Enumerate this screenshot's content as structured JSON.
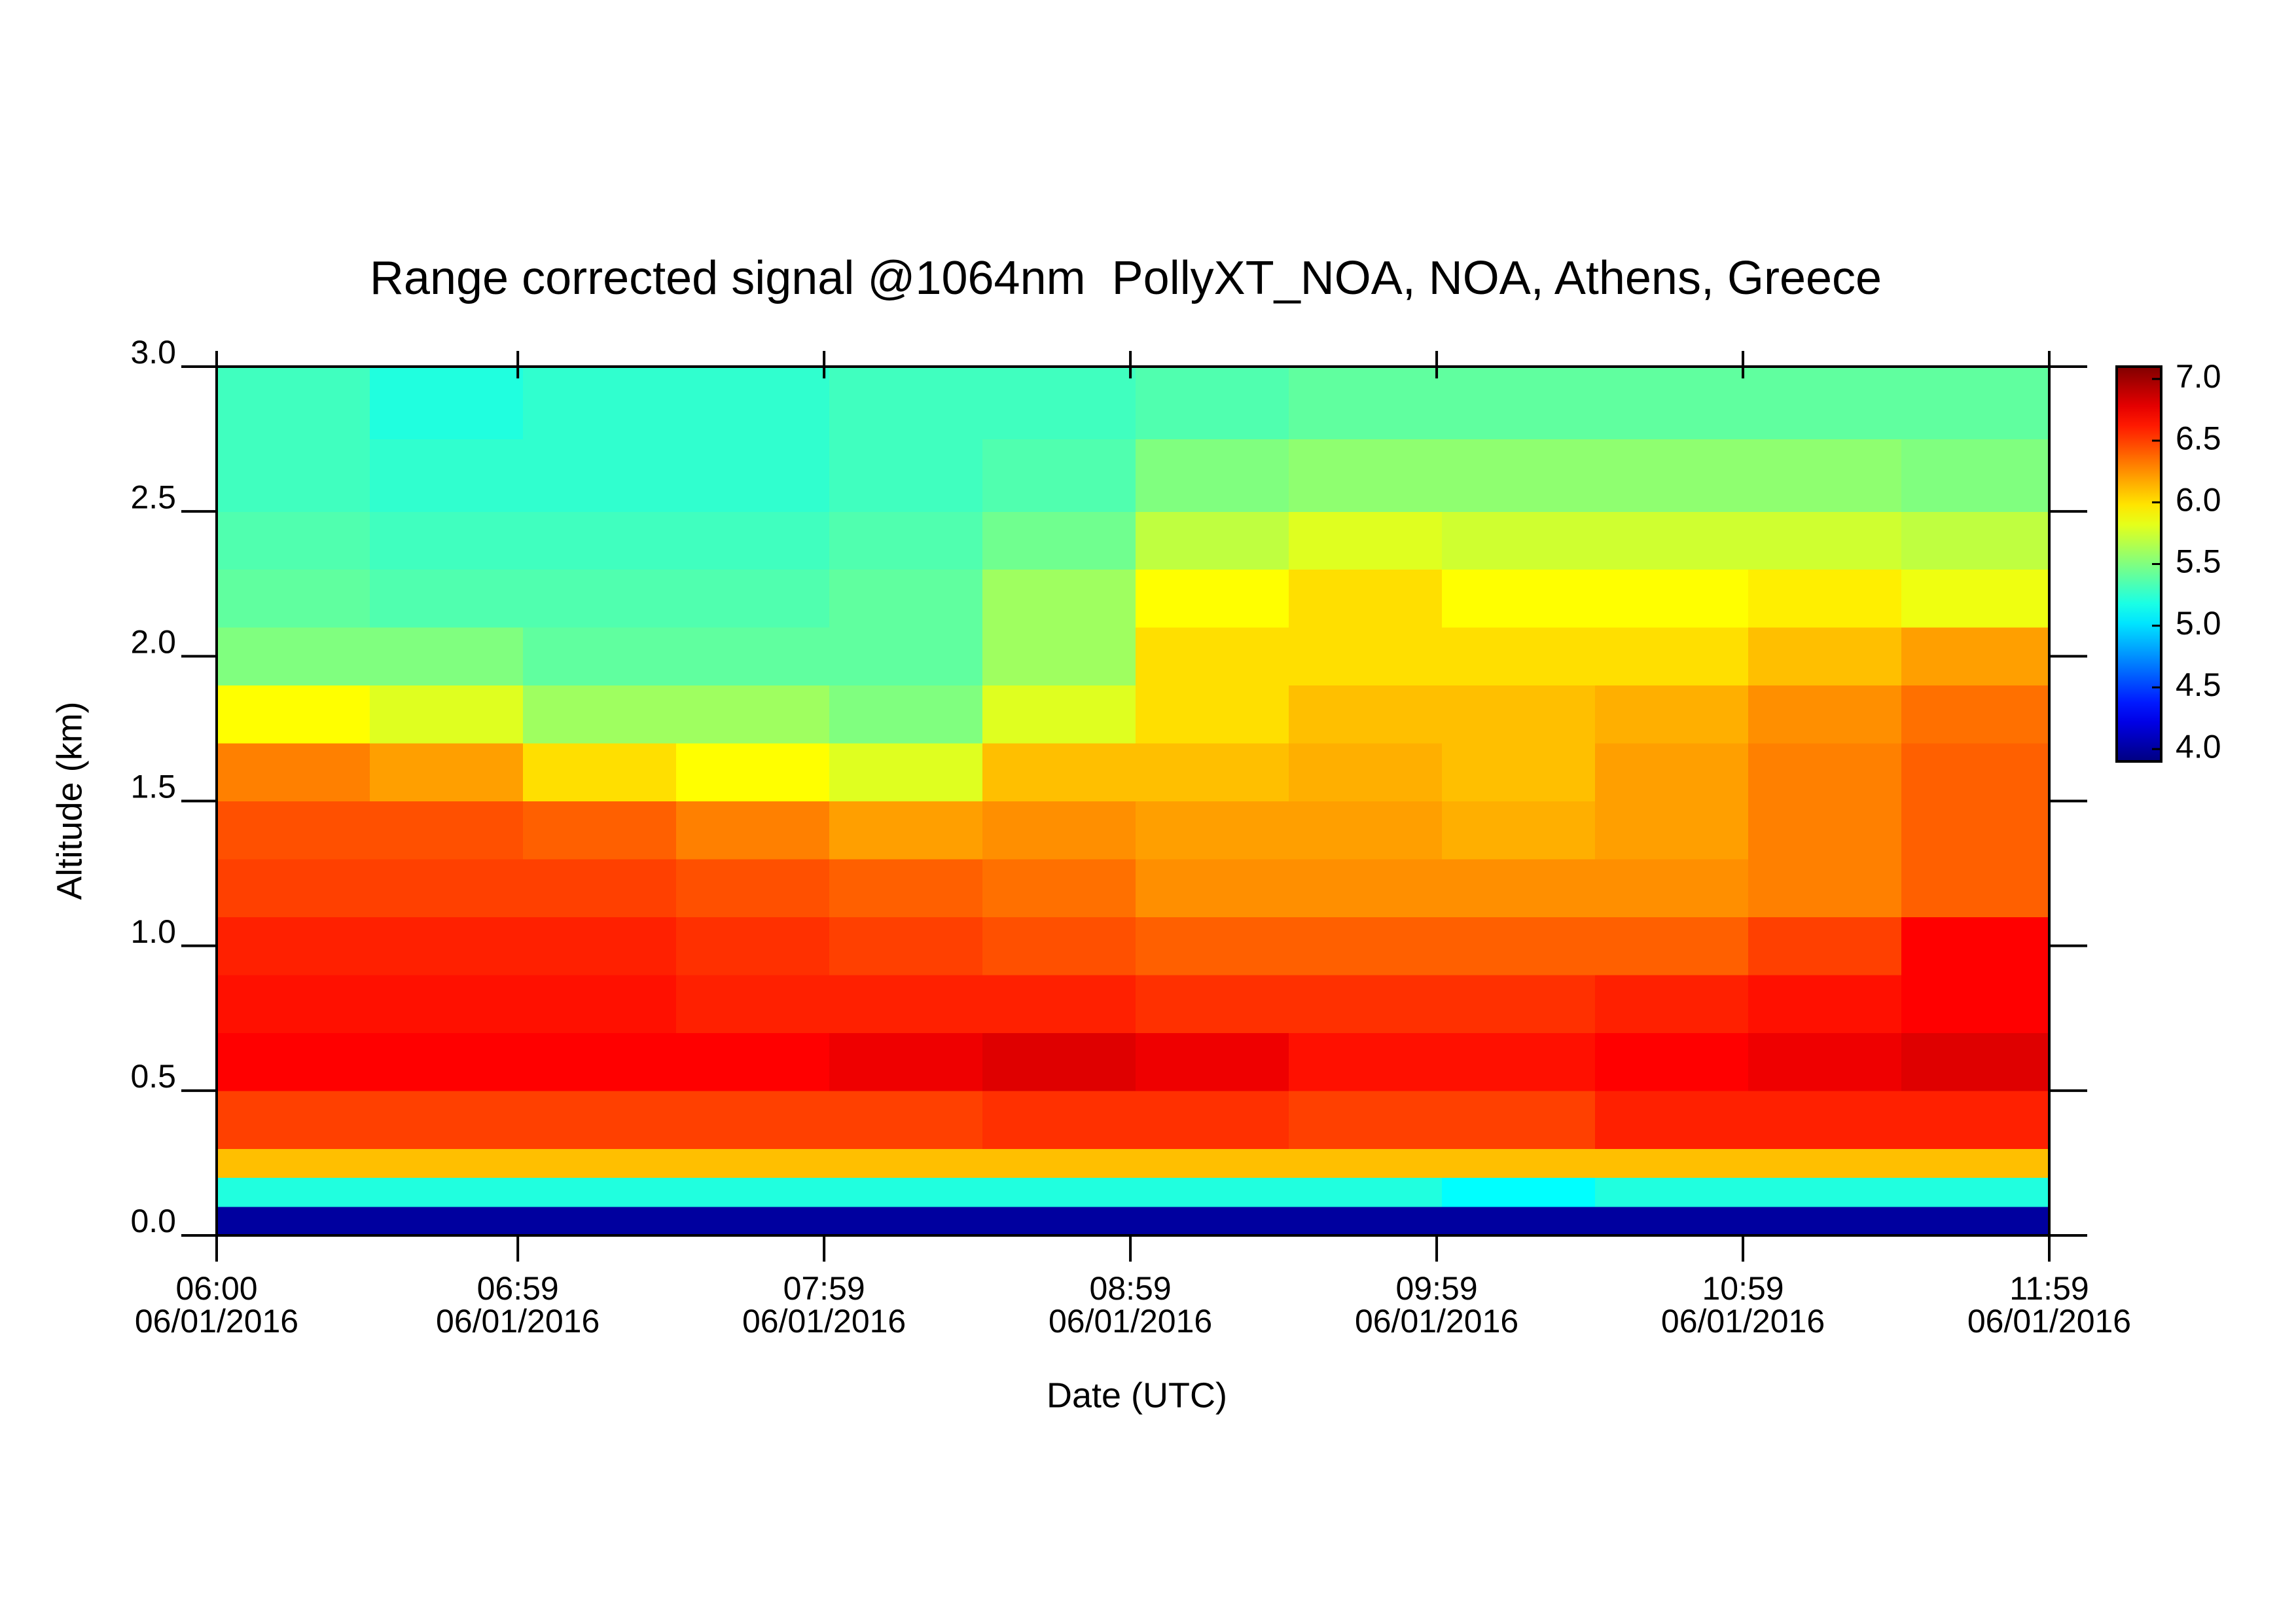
{
  "chart_data": {
    "type": "heatmap",
    "title": "Range corrected signal @1064nm  PollyXT_NOA, NOA, Athens, Greece",
    "xlabel": "Date (UTC)",
    "ylabel": "Altitude (km)",
    "colormap": "jet",
    "x": [
      "06:00",
      "06:30",
      "07:00",
      "07:30",
      "08:00",
      "08:30",
      "09:00",
      "09:30",
      "10:00",
      "10:30",
      "11:00",
      "11:30"
    ],
    "yedges": [
      0,
      0.1,
      0.2,
      0.3,
      0.5,
      0.7,
      0.9,
      1.1,
      1.3,
      1.5,
      1.7,
      1.9,
      2.1,
      2.3,
      2.5,
      2.75,
      3.0
    ],
    "values": [
      [
        4.0,
        4.0,
        4.0,
        4.0,
        4.0,
        4.0,
        4.0,
        4.0,
        4.0,
        4.0,
        4.0,
        4.0
      ],
      [
        5.2,
        5.2,
        5.2,
        5.2,
        5.2,
        5.2,
        5.2,
        5.2,
        5.1,
        5.2,
        5.2,
        5.2
      ],
      [
        6.1,
        6.1,
        6.1,
        6.1,
        6.1,
        6.1,
        6.1,
        6.1,
        6.1,
        6.1,
        6.1,
        6.1
      ],
      [
        6.5,
        6.5,
        6.5,
        6.5,
        6.5,
        6.55,
        6.55,
        6.5,
        6.5,
        6.6,
        6.6,
        6.6
      ],
      [
        6.7,
        6.7,
        6.7,
        6.7,
        6.75,
        6.8,
        6.75,
        6.65,
        6.65,
        6.7,
        6.75,
        6.8
      ],
      [
        6.65,
        6.65,
        6.65,
        6.6,
        6.6,
        6.6,
        6.55,
        6.55,
        6.55,
        6.6,
        6.65,
        6.7
      ],
      [
        6.6,
        6.6,
        6.6,
        6.55,
        6.5,
        6.45,
        6.4,
        6.4,
        6.4,
        6.4,
        6.5,
        6.7
      ],
      [
        6.5,
        6.5,
        6.5,
        6.45,
        6.4,
        6.35,
        6.25,
        6.25,
        6.25,
        6.25,
        6.3,
        6.4
      ],
      [
        6.45,
        6.45,
        6.4,
        6.3,
        6.2,
        6.25,
        6.2,
        6.2,
        6.15,
        6.2,
        6.3,
        6.4
      ],
      [
        6.3,
        6.2,
        6.0,
        5.9,
        5.8,
        6.1,
        6.1,
        6.15,
        6.1,
        6.2,
        6.3,
        6.4
      ],
      [
        5.9,
        5.8,
        5.6,
        5.6,
        5.5,
        5.8,
        6.0,
        6.1,
        6.1,
        6.15,
        6.25,
        6.35
      ],
      [
        5.5,
        5.5,
        5.4,
        5.4,
        5.4,
        5.6,
        6.0,
        6.0,
        6.0,
        6.0,
        6.1,
        6.2
      ],
      [
        5.4,
        5.35,
        5.35,
        5.35,
        5.4,
        5.6,
        5.9,
        6.0,
        5.9,
        5.9,
        5.95,
        5.85
      ],
      [
        5.35,
        5.3,
        5.3,
        5.3,
        5.35,
        5.45,
        5.7,
        5.8,
        5.75,
        5.75,
        5.75,
        5.7
      ],
      [
        5.3,
        5.25,
        5.25,
        5.25,
        5.3,
        5.35,
        5.5,
        5.55,
        5.55,
        5.55,
        5.55,
        5.5
      ],
      [
        5.3,
        5.2,
        5.25,
        5.25,
        5.3,
        5.3,
        5.35,
        5.4,
        5.4,
        5.4,
        5.4,
        5.4
      ]
    ],
    "xlim": [
      "06:00",
      "11:59"
    ],
    "xticks": [
      {
        "value": "06:00",
        "label": [
          "06:00",
          "06/01/2016"
        ]
      },
      {
        "value": "06:59",
        "label": [
          "06:59",
          "06/01/2016"
        ]
      },
      {
        "value": "07:59",
        "label": [
          "07:59",
          "06/01/2016"
        ]
      },
      {
        "value": "08:59",
        "label": [
          "08:59",
          "06/01/2016"
        ]
      },
      {
        "value": "09:59",
        "label": [
          "09:59",
          "06/01/2016"
        ]
      },
      {
        "value": "10:59",
        "label": [
          "10:59",
          "06/01/2016"
        ]
      },
      {
        "value": "11:59",
        "label": [
          "11:59",
          "06/01/2016"
        ]
      }
    ],
    "ylim": [
      0,
      3.0
    ],
    "yticks": [
      {
        "value": 0,
        "label": "0.0"
      },
      {
        "value": 0.5,
        "label": "0.5"
      },
      {
        "value": 1,
        "label": "1.0"
      },
      {
        "value": 1.5,
        "label": "1.5"
      },
      {
        "value": 2,
        "label": "2.0"
      },
      {
        "value": 2.5,
        "label": "2.5"
      },
      {
        "value": 3,
        "label": "3.0"
      }
    ],
    "zlim": [
      3.9,
      7.1
    ],
    "zticks": [
      {
        "value": 4,
        "label": "4.0"
      },
      {
        "value": 4.5,
        "label": "4.5"
      },
      {
        "value": 5,
        "label": "5.0"
      },
      {
        "value": 5.5,
        "label": "5.5"
      },
      {
        "value": 6,
        "label": "6.0"
      },
      {
        "value": 6.5,
        "label": "6.5"
      },
      {
        "value": 7,
        "label": "7.0"
      }
    ]
  }
}
